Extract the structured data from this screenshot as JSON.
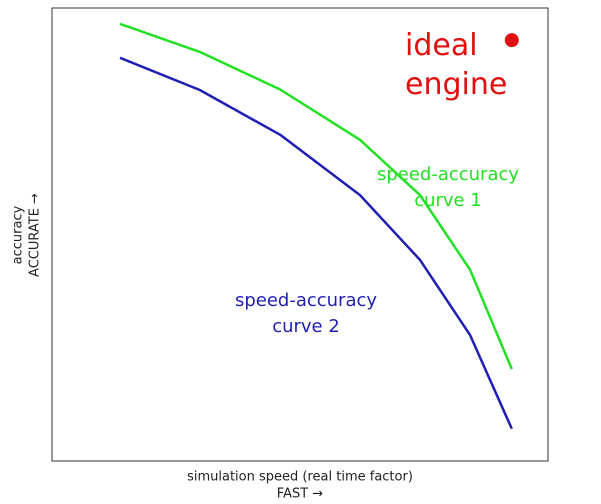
{
  "chart_data": {
    "type": "line",
    "xlabel": [
      "simulation speed (real time factor)",
      "FAST →"
    ],
    "ylabel": [
      "accuracy",
      "ACCURATE →"
    ],
    "xlim": [
      0,
      10
    ],
    "ylim": [
      0,
      10
    ],
    "series": [
      {
        "name": "speed-accuracy curve 1",
        "color": "#22e022",
        "x": [
          1.37,
          2.98,
          4.6,
          6.21,
          7.42,
          8.43,
          9.27
        ],
        "values": [
          9.65,
          9.03,
          8.2,
          7.09,
          5.87,
          4.22,
          2.03
        ]
      },
      {
        "name": "speed-accuracy curve 2",
        "color": "#1f1fb4",
        "x": [
          1.37,
          2.98,
          4.6,
          6.21,
          7.42,
          8.43,
          9.27
        ],
        "values": [
          8.9,
          8.19,
          7.2,
          5.87,
          4.44,
          2.78,
          0.71
        ]
      }
    ],
    "points": [
      {
        "name": "ideal engine",
        "color": "#e01010",
        "x": 9.27,
        "y": 9.29
      }
    ]
  }
}
